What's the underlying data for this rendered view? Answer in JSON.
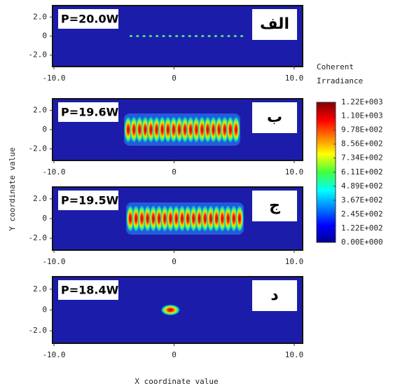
{
  "chart_data": [
    {
      "type": "heatmap",
      "annotation": "P=20.0W",
      "panel_label": "الف",
      "xlim": [
        -10,
        10
      ],
      "ylim": [
        -3.2,
        3.2
      ],
      "xticks": [
        {
          "value": -10,
          "label": "-10.0"
        },
        0,
        {
          "value": 10,
          "label": "10.0"
        }
      ],
      "yticks": [
        {
          "value": 2,
          "label": "2.0"
        },
        0,
        {
          "value": -2,
          "label": "-2.0"
        }
      ]
    },
    {
      "type": "heatmap",
      "annotation": "P=19.6W",
      "panel_label": "ب",
      "xlim": [
        -10,
        10
      ],
      "ylim": [
        -3.2,
        3.2
      ],
      "xticks": [
        {
          "value": -10,
          "label": "-10.0"
        },
        0,
        {
          "value": 10,
          "label": "10.0"
        }
      ],
      "yticks": [
        {
          "value": 2,
          "label": "2.0"
        },
        0,
        {
          "value": -2,
          "label": "-2.0"
        }
      ]
    },
    {
      "type": "heatmap",
      "annotation": "P=19.5W",
      "panel_label": "ج",
      "xlim": [
        -10,
        10
      ],
      "ylim": [
        -3.2,
        3.2
      ],
      "xticks": [
        {
          "value": -10,
          "label": "-10.0"
        },
        0,
        {
          "value": 10,
          "label": "10.0"
        }
      ],
      "yticks": [
        {
          "value": 2,
          "label": "2.0"
        },
        0,
        {
          "value": -2,
          "label": "-2.0"
        }
      ]
    },
    {
      "type": "heatmap",
      "annotation": "P=18.4W",
      "panel_label": "د",
      "xlim": [
        -10,
        10
      ],
      "ylim": [
        -3.2,
        3.2
      ],
      "xticks": [
        {
          "value": -10,
          "label": "-10.0"
        },
        0,
        {
          "value": 10,
          "label": "10.0"
        }
      ],
      "yticks": [
        {
          "value": 2,
          "label": "2.0"
        },
        0,
        {
          "value": -2,
          "label": "-2.0"
        }
      ]
    }
  ],
  "x_label": "X coordinate value",
  "y_label": "Y coordinate value",
  "colorbar": {
    "title": [
      "Coherent",
      "Irradiance"
    ],
    "lim": [
      0,
      1220
    ],
    "ticks": [
      {
        "value": 1220,
        "label": "1.22E+003"
      },
      {
        "value": 1100,
        "label": "1.10E+003"
      },
      {
        "value": 978,
        "label": "9.78E+002"
      },
      {
        "value": 856,
        "label": "8.56E+002"
      },
      {
        "value": 734,
        "label": "7.34E+002"
      },
      {
        "value": 611,
        "label": "6.11E+002"
      },
      {
        "value": 489,
        "label": "4.89E+002"
      },
      {
        "value": 367,
        "label": "3.67E+002"
      },
      {
        "value": 245,
        "label": "2.45E+002"
      },
      {
        "value": 122,
        "label": "1.22E+002"
      },
      {
        "value": 0,
        "label": "0.00E+000"
      }
    ]
  }
}
